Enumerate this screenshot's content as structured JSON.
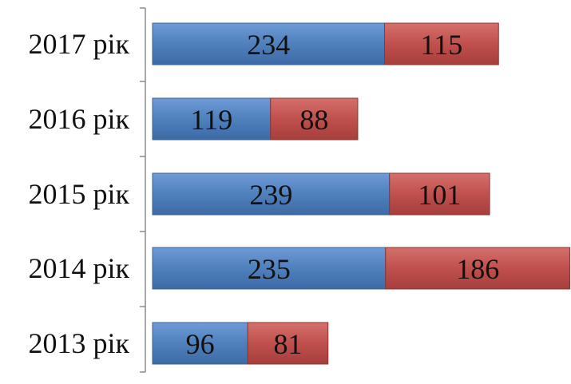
{
  "chart_data": {
    "type": "bar",
    "orientation": "horizontal",
    "stacked": true,
    "categories": [
      "2017 рік",
      "2016 рік",
      "2015 рік",
      "2014 рік",
      "2013 рік"
    ],
    "series": [
      {
        "values": [
          234,
          119,
          239,
          235,
          96
        ],
        "color": "#4f81bd"
      },
      {
        "values": [
          115,
          88,
          101,
          186,
          81
        ],
        "color": "#c0504d"
      }
    ],
    "xlim": [
      0,
      430
    ],
    "grid": false,
    "legend": "none"
  }
}
